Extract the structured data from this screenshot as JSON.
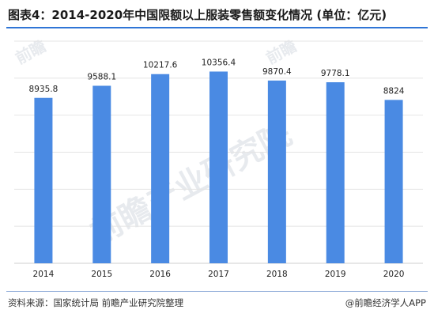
{
  "title": "图表4：2014-2020年中国限额以上服装零售额变化情况 (单位：亿元)",
  "watermark": {
    "small": "前瞻",
    "large": "前瞻产业研究院"
  },
  "source": "资料来源：国家统计局 前瞻产业研究院整理",
  "credit": "@前瞻经济学人APP",
  "colors": {
    "bar": "#4a8ae3",
    "grid": "#e4e4e4",
    "accent": "#2f75d6"
  },
  "chart_data": {
    "type": "bar",
    "categories": [
      "2014",
      "2015",
      "2016",
      "2017",
      "2018",
      "2019",
      "2020"
    ],
    "values": [
      8935.8,
      9588.1,
      10217.6,
      10356.4,
      9870.4,
      9778.1,
      8824
    ],
    "labels": [
      "8935.8",
      "9588.1",
      "10217.6",
      "10356.4",
      "9870.4",
      "9778.1",
      "8824"
    ],
    "ylim": [
      0,
      12000
    ],
    "grid": true,
    "xlabel": "",
    "ylabel": ""
  }
}
